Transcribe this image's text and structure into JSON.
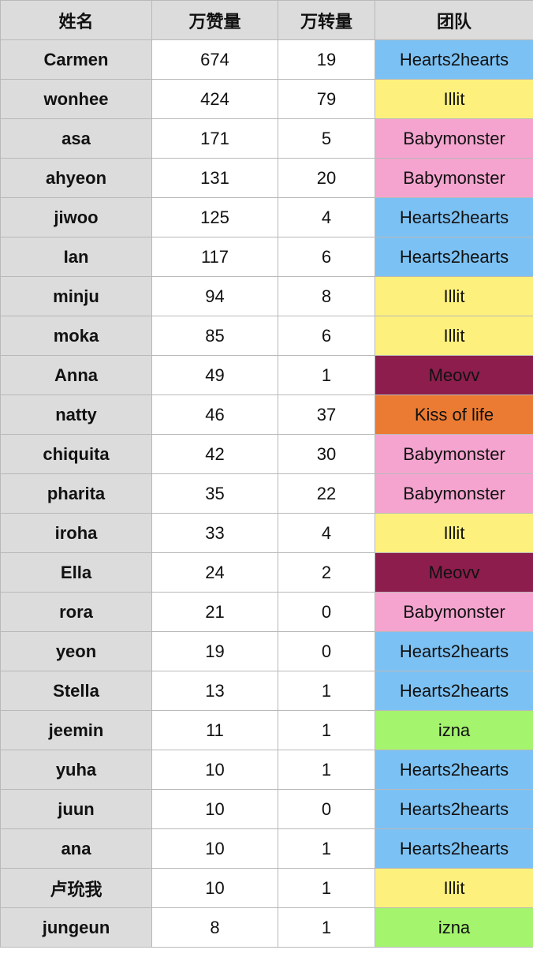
{
  "columns": {
    "name": "姓名",
    "likes": "万赞量",
    "shares": "万转量",
    "team": "团队"
  },
  "team_colors": {
    "Hearts2hearts": "#7cc1f3",
    "Illit": "#fef07c",
    "Babymonster": "#f4a4cf",
    "Meovv": "#8c1d4c",
    "Kiss of life": "#eb7b32",
    "izna": "#a4f46e"
  },
  "rows": [
    {
      "name": "Carmen",
      "likes": "674",
      "shares": "19",
      "team": "Hearts2hearts"
    },
    {
      "name": "wonhee",
      "likes": "424",
      "shares": "79",
      "team": "Illit"
    },
    {
      "name": "asa",
      "likes": "171",
      "shares": "5",
      "team": "Babymonster"
    },
    {
      "name": "ahyeon",
      "likes": "131",
      "shares": "20",
      "team": "Babymonster"
    },
    {
      "name": "jiwoo",
      "likes": "125",
      "shares": "4",
      "team": "Hearts2hearts"
    },
    {
      "name": "Ian",
      "likes": "117",
      "shares": "6",
      "team": "Hearts2hearts"
    },
    {
      "name": "minju",
      "likes": "94",
      "shares": "8",
      "team": "Illit"
    },
    {
      "name": "moka",
      "likes": "85",
      "shares": "6",
      "team": "Illit"
    },
    {
      "name": "Anna",
      "likes": "49",
      "shares": "1",
      "team": "Meovv"
    },
    {
      "name": "natty",
      "likes": "46",
      "shares": "37",
      "team": "Kiss of life"
    },
    {
      "name": "chiquita",
      "likes": "42",
      "shares": "30",
      "team": "Babymonster"
    },
    {
      "name": "pharita",
      "likes": "35",
      "shares": "22",
      "team": "Babymonster"
    },
    {
      "name": "iroha",
      "likes": "33",
      "shares": "4",
      "team": "Illit"
    },
    {
      "name": "Ella",
      "likes": "24",
      "shares": "2",
      "team": "Meovv"
    },
    {
      "name": "rora",
      "likes": "21",
      "shares": "0",
      "team": "Babymonster"
    },
    {
      "name": "yeon",
      "likes": "19",
      "shares": "0",
      "team": "Hearts2hearts"
    },
    {
      "name": "Stella",
      "likes": "13",
      "shares": "1",
      "team": "Hearts2hearts"
    },
    {
      "name": "jeemin",
      "likes": "11",
      "shares": "1",
      "team": "izna"
    },
    {
      "name": "yuha",
      "likes": "10",
      "shares": "1",
      "team": "Hearts2hearts"
    },
    {
      "name": "juun",
      "likes": "10",
      "shares": "0",
      "team": "Hearts2hearts"
    },
    {
      "name": "ana",
      "likes": "10",
      "shares": "1",
      "team": "Hearts2hearts"
    },
    {
      "name": "卢玧我",
      "likes": "10",
      "shares": "1",
      "team": "Illit"
    },
    {
      "name": "jungeun",
      "likes": "8",
      "shares": "1",
      "team": "izna"
    }
  ]
}
